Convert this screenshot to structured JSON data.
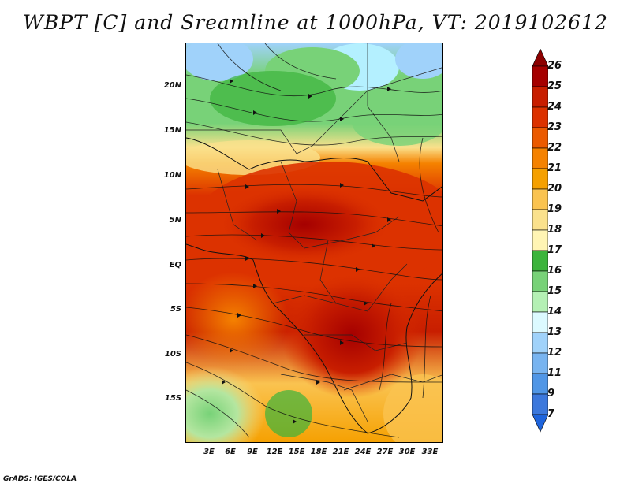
{
  "title": "WBPT [C] and Sreamline at 1000hPa, VT: 2019102612",
  "credit": "GrADS: IGES/COLA",
  "map": {
    "lat_labels": [
      "20N",
      "15N",
      "10N",
      "5N",
      "EQ",
      "5S",
      "10S",
      "15S"
    ],
    "lon_labels": [
      "3E",
      "6E",
      "9E",
      "12E",
      "15E",
      "18E",
      "21E",
      "24E",
      "27E",
      "30E",
      "33E"
    ]
  },
  "colorbar": {
    "labels": [
      "26",
      "25",
      "24",
      "23",
      "22",
      "21",
      "20",
      "19",
      "18",
      "17",
      "16",
      "15",
      "14",
      "13",
      "12",
      "11",
      "9",
      "7"
    ],
    "colors": [
      "#a50000",
      "#c81e00",
      "#dc3200",
      "#eb5a00",
      "#f58200",
      "#f5a000",
      "#fac350",
      "#fae18c",
      "#fff5b4",
      "#3cb43c",
      "#78d278",
      "#b4f0b4",
      "#dcfaff",
      "#a0d2fa",
      "#78b4f0",
      "#5096e6",
      "#3c78dc",
      "#1e5ad2"
    ],
    "top_arrow_color": "#8c0000",
    "bottom_arrow_color": "#1e64dc"
  }
}
